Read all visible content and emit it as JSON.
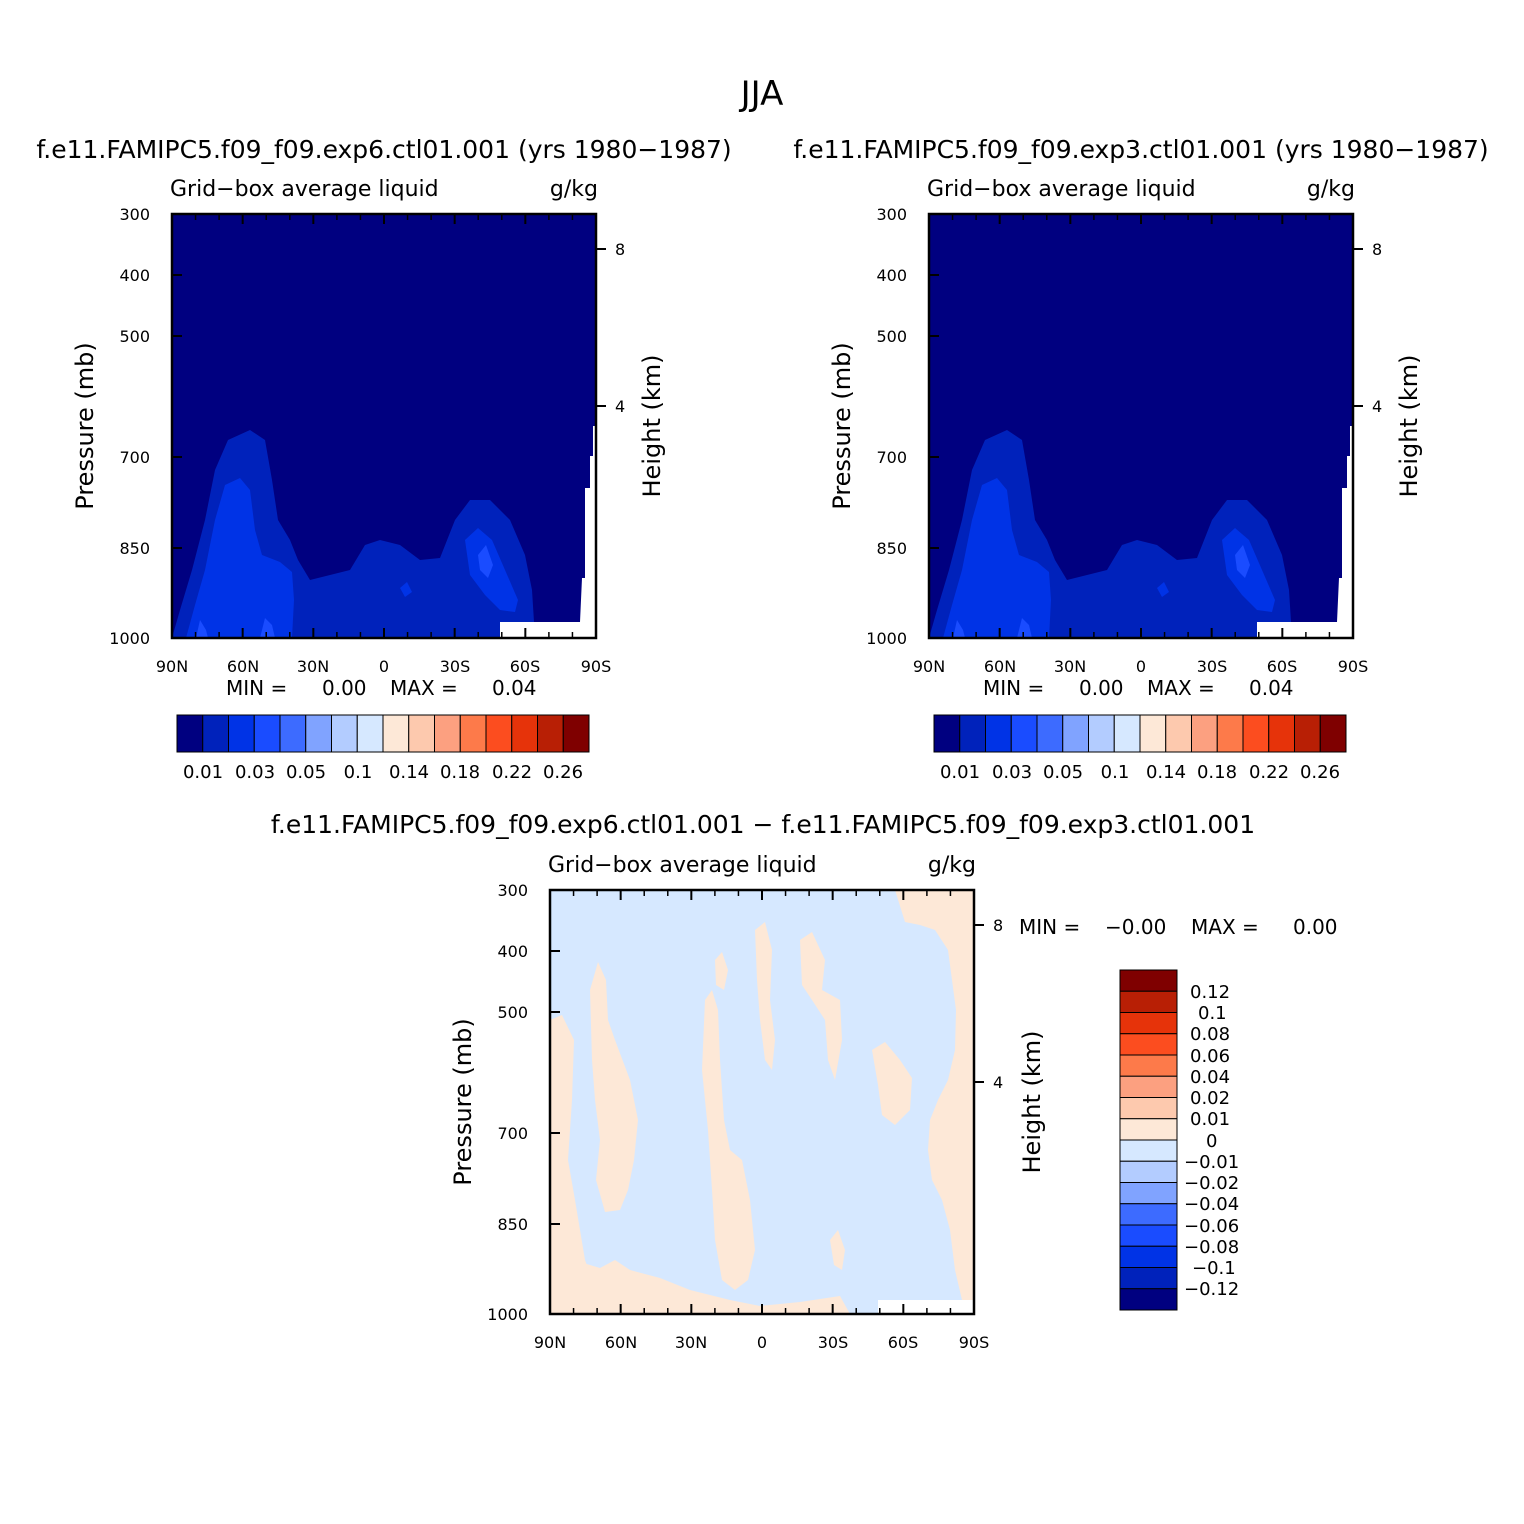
{
  "page_title": "JJA",
  "colors": {
    "abs_scale": [
      "#000080",
      "#0022bb",
      "#0033e6",
      "#1a4cff",
      "#3d6bff",
      "#80a3ff",
      "#b3ccff",
      "#d6e8ff",
      "#fde8d7",
      "#fdc9ae",
      "#fca080",
      "#fd7a4a",
      "#fc4d1f",
      "#e6330a",
      "#b81f05",
      "#7f0000"
    ],
    "diff_scale": [
      "#000080",
      "#0022bb",
      "#0033e6",
      "#1a4cff",
      "#3d6bff",
      "#80a3ff",
      "#b3ccff",
      "#d6e8ff",
      "#fde8d7",
      "#fdc9ae",
      "#fca080",
      "#fd7a4a",
      "#fc4d1f",
      "#e6330a",
      "#b81f05",
      "#7f0000"
    ]
  },
  "chart_data": [
    {
      "type": "heatmap",
      "title": "f.e11.FAMIPC5.f09_f09.exp6.ctl01.001 (yrs 1980−1987)",
      "subtitle_left": "Grid−box average liquid",
      "subtitle_right": "g/kg",
      "ylabel": "Pressure (mb)",
      "y2label": "Height (km)",
      "x_ticks": [
        "90N",
        "60N",
        "30N",
        "0",
        "30S",
        "60S",
        "90S"
      ],
      "y_ticks": [
        "300",
        "400",
        "500",
        "700",
        "850",
        "1000"
      ],
      "y2_ticks": [
        "8",
        "4"
      ],
      "min_label": "MIN =",
      "min_value": "0.00",
      "max_label": "MAX =",
      "max_value": "0.04",
      "colorbar_labels": [
        "0.01",
        "0.03",
        "0.05",
        "0.1",
        "0.14",
        "0.18",
        "0.22",
        "0.26"
      ]
    },
    {
      "type": "heatmap",
      "title": "f.e11.FAMIPC5.f09_f09.exp3.ctl01.001 (yrs 1980−1987)",
      "subtitle_left": "Grid−box average liquid",
      "subtitle_right": "g/kg",
      "ylabel": "Pressure (mb)",
      "y2label": "Height (km)",
      "x_ticks": [
        "90N",
        "60N",
        "30N",
        "0",
        "30S",
        "60S",
        "90S"
      ],
      "y_ticks": [
        "300",
        "400",
        "500",
        "700",
        "850",
        "1000"
      ],
      "y2_ticks": [
        "8",
        "4"
      ],
      "min_label": "MIN =",
      "min_value": "0.00",
      "max_label": "MAX =",
      "max_value": "0.04",
      "colorbar_labels": [
        "0.01",
        "0.03",
        "0.05",
        "0.1",
        "0.14",
        "0.18",
        "0.22",
        "0.26"
      ]
    },
    {
      "type": "heatmap",
      "title": "f.e11.FAMIPC5.f09_f09.exp6.ctl01.001 − f.e11.FAMIPC5.f09_f09.exp3.ctl01.001",
      "subtitle_left": "Grid−box average liquid",
      "subtitle_right": "g/kg",
      "ylabel": "Pressure (mb)",
      "y2label": "Height (km)",
      "x_ticks": [
        "90N",
        "60N",
        "30N",
        "0",
        "30S",
        "60S",
        "90S"
      ],
      "y_ticks": [
        "300",
        "400",
        "500",
        "700",
        "850",
        "1000"
      ],
      "y2_ticks": [
        "8",
        "4"
      ],
      "min_label": "MIN =",
      "min_value": "−0.00",
      "max_label": "MAX =",
      "max_value": "0.00",
      "colorbar_labels": [
        "0.12",
        "0.1",
        "0.08",
        "0.06",
        "0.04",
        "0.02",
        "0.01",
        "0",
        "−0.01",
        "−0.02",
        "−0.04",
        "−0.06",
        "−0.08",
        "−0.1",
        "−0.12"
      ]
    }
  ]
}
